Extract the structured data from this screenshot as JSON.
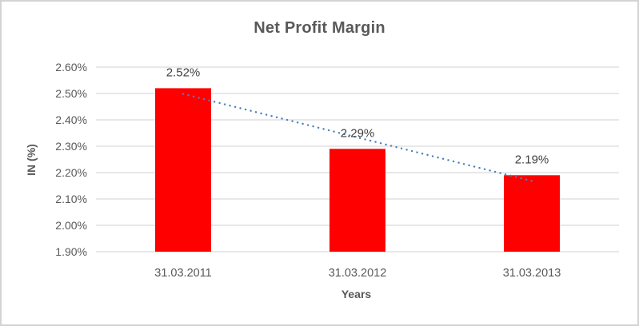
{
  "frame": {
    "background": "#FFFFFF",
    "border_color": "#D3D3D3"
  },
  "chart_data": {
    "type": "bar",
    "title": "Net Profit Margin",
    "categories": [
      "31.03.2011",
      "31.03.2012",
      "31.03.2013"
    ],
    "values": [
      2.52,
      2.29,
      2.19
    ],
    "data_labels": [
      "2.52%",
      "2.29%",
      "2.19%"
    ],
    "xlabel": "Years",
    "ylabel": "IN (%)",
    "ylim": [
      1.9,
      2.6
    ],
    "ytick_step": 0.1,
    "ytick_labels": [
      "2.60%",
      "2.50%",
      "2.40%",
      "2.30%",
      "2.20%",
      "2.10%",
      "2.00%",
      "1.90%"
    ],
    "grid": true,
    "legend": "none",
    "colors": {
      "bar": "#FF0000",
      "gridline": "#D9D9D9",
      "axis_line": "#D9D9D9",
      "tick_text": "#595959",
      "data_label_text": "#404040",
      "trendline": "#4F81BD"
    },
    "trendline": {
      "type": "linear",
      "style": "dotted"
    }
  }
}
